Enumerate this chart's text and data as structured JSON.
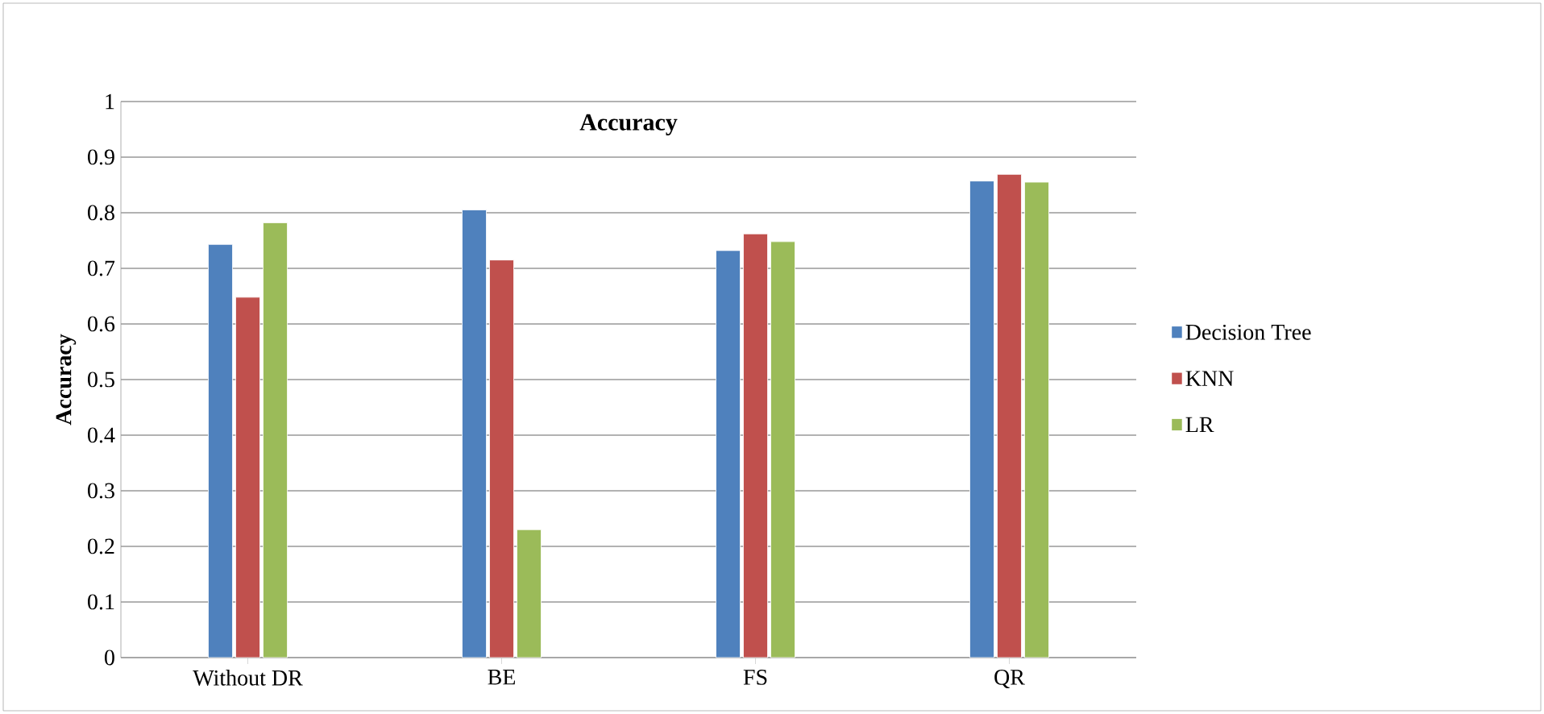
{
  "chart_data": {
    "type": "bar",
    "title": "Accuracy",
    "ylabel": "Accuracy",
    "categories": [
      "Without DR",
      "BE",
      "FS",
      "QR"
    ],
    "series": [
      {
        "name": "Decision Tree",
        "color": "#4f81bd",
        "values": [
          0.743,
          0.805,
          0.732,
          0.857
        ]
      },
      {
        "name": "KNN",
        "color": "#c0504d",
        "values": [
          0.648,
          0.715,
          0.762,
          0.869
        ]
      },
      {
        "name": "LR",
        "color": "#9bbb59",
        "values": [
          0.782,
          0.23,
          0.748,
          0.855
        ]
      }
    ],
    "ylim": [
      0,
      1
    ],
    "yticks": [
      0,
      0.1,
      0.2,
      0.3,
      0.4,
      0.5,
      0.6,
      0.7,
      0.8,
      0.9,
      1
    ],
    "grid": "y",
    "legend": "right"
  }
}
